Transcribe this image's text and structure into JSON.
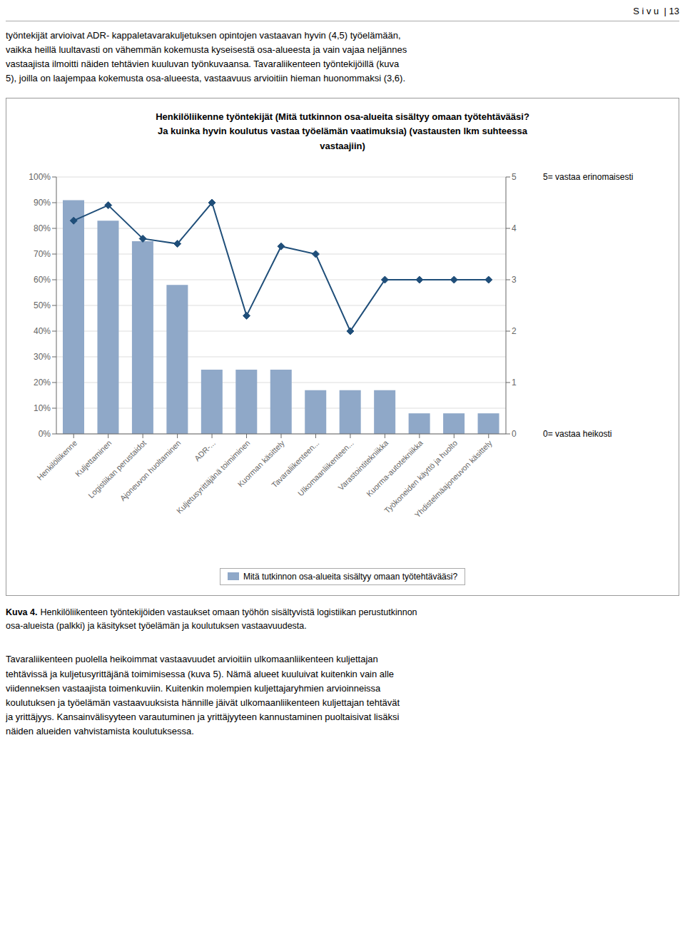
{
  "chart_data": {
    "type": "bar",
    "title": "Henkilöliikenne työntekijät (Mitä tutkinnon osa-alueita sisältyy omaan työtehtävääsi?\nJa kuinka hyvin koulutus vastaa työelämän vaatimuksia) (vastausten lkm suhteessa\nvastaajiin)",
    "page_header": "S i v u  | 13",
    "text_above": "työntekijät arvioivat ADR- kappaletavarakuljetuksen opintojen vastaavan hyvin (4,5) työelämään,\nvaikka heillä luultavasti on vähemmän kokemusta kyseisestä osa-alueesta ja vain vajaa neljännes\nvastaajista ilmoitti näiden tehtävien kuuluvan työnkuvaansa. Tavaraliikenteen työntekijöillä (kuva\n5), joilla on laajempaa kokemusta osa-alueesta, vastaavuus arvioitiin hieman huonommaksi (3,6).",
    "caption_label": "Kuva 4.",
    "caption": "Henkilöliikenteen työntekijöiden vastaukset omaan työhön sisältyvistä logistiikan perustutkinnon\nosa-alueista (palkki) ja käsitykset työelämän ja koulutuksen vastaavuudesta.",
    "text_below": "Tavaraliikenteen puolella heikoimmat vastaavuudet arvioitiin ulkomaanliikenteen kuljettajan\ntehtävissä ja kuljetusyrittäjänä toimimisessa (kuva 5). Nämä alueet kuuluivat kuitenkin vain alle\nviidenneksen vastaajista toimenkuviin. Kuitenkin molempien kuljettajaryhmien arvioinneissa\nkoulutuksen ja työelämän vastaavuuksista hännille jäivät ulkomaanliikenteen kuljettajan tehtävät\nja yrittäjyys. Kansainvälisyyteen varautuminen ja yrittäjyyteen kannustaminen puoltaisivat lisäksi\nnäiden alueiden vahvistamista koulutuksessa.",
    "annotations": [
      "5= vastaa erinomaisesti",
      "0= vastaa heikosti"
    ],
    "categories": [
      "Henkilöliikenne",
      "Kuljettaminen",
      "Logistiikan perustaidot",
      "Ajoneuvon huoltaminen",
      "ADR-...",
      "Kuljetusyrittäjänä toimiminen",
      "Kuorman käsittely",
      "Tavaraliikenteen...",
      "Ulkomaanliikenteen...",
      "Varastointitekniikka",
      "Kuorma-autotekniikka",
      "Työkoneiden käyttö ja huolto",
      "Yhdistelmäajoneuvon käsittely"
    ],
    "series": [
      {
        "name": "Mitä tutkinnon osa-alueita sisältyy omaan työtehtävääsi?",
        "type": "bar",
        "color": "#8FA8C8",
        "values": [
          91,
          83,
          75,
          58,
          25,
          25,
          25,
          17,
          17,
          17,
          8,
          8,
          8
        ]
      },
      {
        "type": "line",
        "axis": "y2",
        "color": "#1F4E79",
        "marker": "diamond",
        "values": [
          4.15,
          4.45,
          3.8,
          3.7,
          4.5,
          2.3,
          3.65,
          3.5,
          2.0,
          3.0,
          3.0,
          3.0,
          3.0
        ]
      }
    ],
    "ylim": [
      0,
      100
    ],
    "yticks": [
      {
        "value": 0,
        "label": "0%"
      },
      {
        "value": 10,
        "label": "10%"
      },
      {
        "value": 20,
        "label": "20%"
      },
      {
        "value": 30,
        "label": "30%"
      },
      {
        "value": 40,
        "label": "40%"
      },
      {
        "value": 50,
        "label": "50%"
      },
      {
        "value": 60,
        "label": "60%"
      },
      {
        "value": 70,
        "label": "70%"
      },
      {
        "value": 80,
        "label": "80%"
      },
      {
        "value": 90,
        "label": "90%"
      },
      {
        "value": 100,
        "label": "100%"
      }
    ],
    "y2lim": [
      0,
      5
    ],
    "y2ticks": [
      0,
      1,
      2,
      3,
      4,
      5
    ],
    "grid": true,
    "legend": "bottom"
  }
}
